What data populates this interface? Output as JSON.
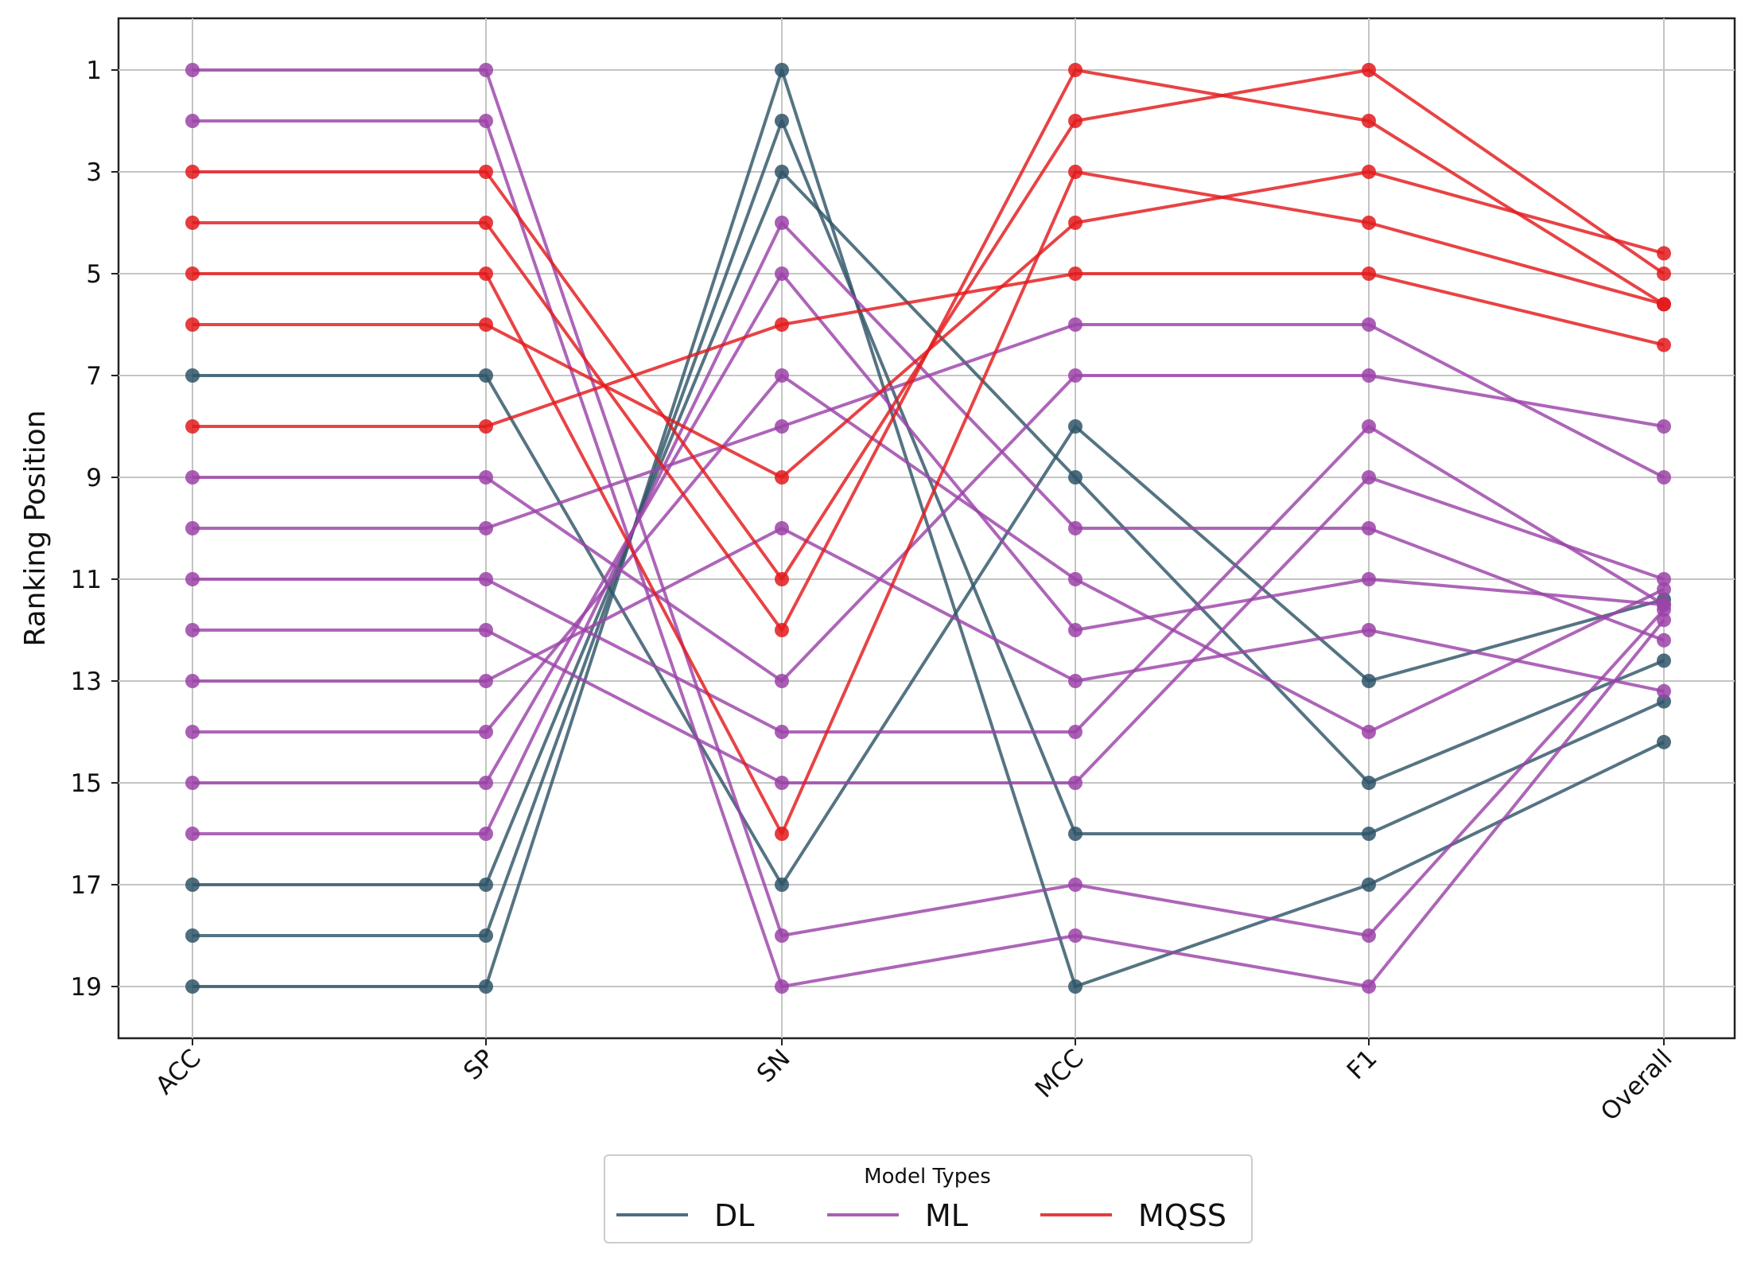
{
  "chart_data": {
    "type": "line",
    "subtype": "parallel-coordinates ranking",
    "title": "",
    "xlabel": "",
    "ylabel": "Ranking Position",
    "categories": [
      "ACC",
      "SP",
      "SN",
      "MCC",
      "F1",
      "Overall"
    ],
    "yticks": [
      "1",
      "3",
      "5",
      "7",
      "9",
      "11",
      "13",
      "15",
      "17",
      "19"
    ],
    "ylim": [
      20,
      0
    ],
    "y_inverted": true,
    "grid": true,
    "legend": {
      "title": "Model Types",
      "placement": "bottom-center",
      "entries": [
        {
          "label": "DL",
          "color": "#2f5568"
        },
        {
          "label": "ML",
          "color": "#9b43a8"
        },
        {
          "label": "MQSS",
          "color": "#e31a1c"
        }
      ]
    },
    "series": [
      {
        "group": "DL",
        "values": [
          7,
          7,
          17,
          8,
          13,
          11.4
        ]
      },
      {
        "group": "DL",
        "values": [
          17,
          17,
          3,
          9,
          15,
          12.6
        ]
      },
      {
        "group": "DL",
        "values": [
          18,
          18,
          2,
          16,
          16,
          13.4
        ]
      },
      {
        "group": "DL",
        "values": [
          19,
          19,
          1,
          19,
          17,
          14.2
        ]
      },
      {
        "group": "ML",
        "values": [
          1,
          1,
          18,
          17,
          18,
          11.6
        ]
      },
      {
        "group": "ML",
        "values": [
          2,
          2,
          19,
          18,
          19,
          11.8
        ]
      },
      {
        "group": "ML",
        "values": [
          9,
          9,
          13,
          7,
          7,
          8
        ]
      },
      {
        "group": "ML",
        "values": [
          10,
          10,
          8,
          6,
          6,
          9
        ]
      },
      {
        "group": "ML",
        "values": [
          11,
          11,
          14,
          14,
          8,
          11.5
        ]
      },
      {
        "group": "ML",
        "values": [
          12,
          12,
          15,
          15,
          9,
          11
        ]
      },
      {
        "group": "ML",
        "values": [
          13,
          13,
          10,
          13,
          12,
          13.2
        ]
      },
      {
        "group": "ML",
        "values": [
          14,
          14,
          7,
          11,
          14,
          11.2
        ]
      },
      {
        "group": "ML",
        "values": [
          15,
          15,
          5,
          12,
          11,
          11.5
        ]
      },
      {
        "group": "ML",
        "values": [
          16,
          16,
          4,
          10,
          10,
          12.2
        ]
      },
      {
        "group": "MQSS",
        "values": [
          3,
          3,
          11,
          2,
          1,
          5
        ]
      },
      {
        "group": "MQSS",
        "values": [
          4,
          4,
          12,
          1,
          2,
          5.6
        ]
      },
      {
        "group": "MQSS",
        "values": [
          5,
          5,
          16,
          3,
          4,
          5.6
        ]
      },
      {
        "group": "MQSS",
        "values": [
          6,
          6,
          9,
          4,
          3,
          4.6
        ]
      },
      {
        "group": "MQSS",
        "values": [
          8,
          8,
          6,
          5,
          5,
          6.4
        ]
      }
    ]
  }
}
